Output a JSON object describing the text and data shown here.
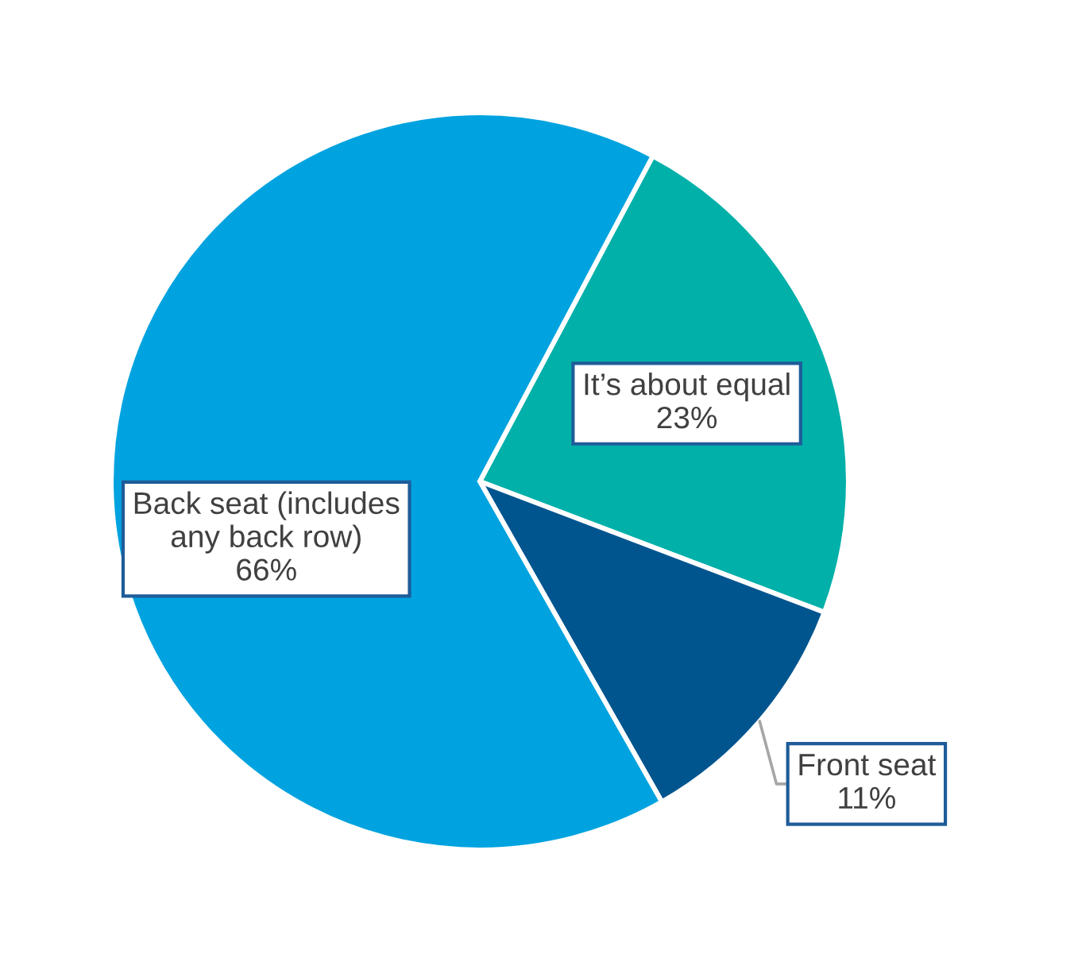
{
  "chart_data": {
    "type": "pie",
    "categories": [
      "It’s about equal",
      "Front seat",
      "Back seat (includes\nany back row)"
    ],
    "values": [
      23,
      11,
      66
    ],
    "value_labels": [
      "23%",
      "11%",
      "66%"
    ],
    "colors": [
      "#00b0a9",
      "#00558f",
      "#00a3df"
    ]
  }
}
